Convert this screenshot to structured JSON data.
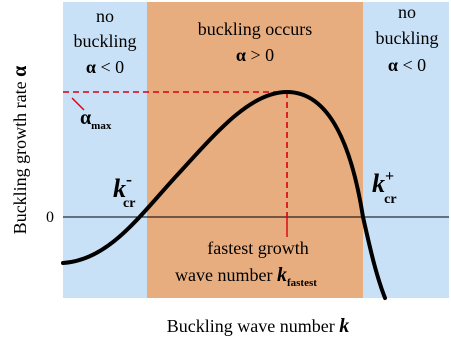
{
  "diagram": {
    "y_axis_label": "Buckling growth rate",
    "y_axis_symbol": "α",
    "x_axis_label": "Buckling wave number",
    "x_axis_symbol": "k",
    "zero_label": "0",
    "regions": {
      "left": {
        "line1": "no",
        "line2": "buckling",
        "condition_symbol": "α",
        "condition_rest": " < 0"
      },
      "middle": {
        "line1": "buckling occurs",
        "condition_symbol": "α",
        "condition_rest": " > 0"
      },
      "right": {
        "line1": "no",
        "line2": "buckling",
        "condition_symbol": "α",
        "condition_rest": " < 0"
      }
    },
    "alpha_max": {
      "symbol": "α",
      "subscript": "max"
    },
    "k_cr_minus": {
      "symbol": "k",
      "subscript": "cr",
      "superscript": "-"
    },
    "k_cr_plus": {
      "symbol": "k",
      "subscript": "cr",
      "superscript": "+"
    },
    "fastest": {
      "line1": "fastest growth",
      "line2_text": "wave number ",
      "symbol": "k",
      "subscript": "fastest"
    },
    "colors": {
      "stable_region": "#c9e1f6",
      "unstable_region": "#e8ad7f",
      "curve": "#000000",
      "guide_lines": "#d9000f"
    }
  }
}
